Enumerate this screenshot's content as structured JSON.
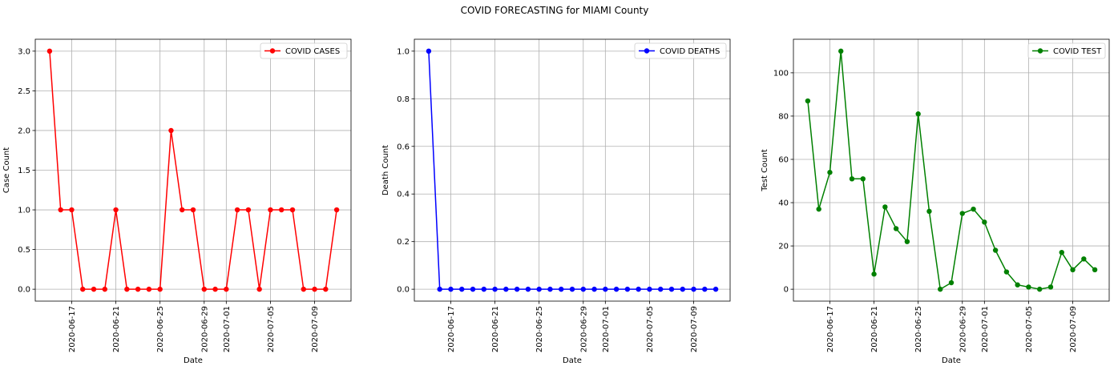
{
  "figure": {
    "title": "COVID FORECASTING for MIAMI County"
  },
  "chart_data": [
    {
      "type": "line",
      "title": "",
      "xlabel": "Date",
      "ylabel": "Case Count",
      "x": [
        "2020-06-15",
        "2020-06-16",
        "2020-06-17",
        "2020-06-18",
        "2020-06-19",
        "2020-06-20",
        "2020-06-21",
        "2020-06-22",
        "2020-06-23",
        "2020-06-24",
        "2020-06-25",
        "2020-06-26",
        "2020-06-27",
        "2020-06-28",
        "2020-06-29",
        "2020-06-30",
        "2020-07-01",
        "2020-07-02",
        "2020-07-03",
        "2020-07-04",
        "2020-07-05",
        "2020-07-06",
        "2020-07-07",
        "2020-07-08",
        "2020-07-09",
        "2020-07-10",
        "2020-07-11"
      ],
      "x_ticks": [
        "2020-06-17",
        "2020-06-21",
        "2020-06-25",
        "2020-06-29",
        "2020-07-01",
        "2020-07-05",
        "2020-07-09"
      ],
      "y_ticks": [
        "0.0",
        "0.5",
        "1.0",
        "1.5",
        "2.0",
        "2.5",
        "3.0"
      ],
      "ylim": [
        -0.15,
        3.15
      ],
      "grid": true,
      "legend_position": "top-right",
      "series": [
        {
          "name": "COVID CASES",
          "color": "#ff0000",
          "values": [
            3,
            1,
            1,
            0,
            0,
            0,
            1,
            0,
            0,
            0,
            0,
            2,
            1,
            1,
            0,
            0,
            0,
            1,
            1,
            0,
            1,
            1,
            1,
            0,
            0,
            0,
            1
          ]
        }
      ]
    },
    {
      "type": "line",
      "title": "",
      "xlabel": "Date",
      "ylabel": "Death Count",
      "x": [
        "2020-06-15",
        "2020-06-16",
        "2020-06-17",
        "2020-06-18",
        "2020-06-19",
        "2020-06-20",
        "2020-06-21",
        "2020-06-22",
        "2020-06-23",
        "2020-06-24",
        "2020-06-25",
        "2020-06-26",
        "2020-06-27",
        "2020-06-28",
        "2020-06-29",
        "2020-06-30",
        "2020-07-01",
        "2020-07-02",
        "2020-07-03",
        "2020-07-04",
        "2020-07-05",
        "2020-07-06",
        "2020-07-07",
        "2020-07-08",
        "2020-07-09",
        "2020-07-10",
        "2020-07-11"
      ],
      "x_ticks": [
        "2020-06-17",
        "2020-06-21",
        "2020-06-25",
        "2020-06-29",
        "2020-07-01",
        "2020-07-05",
        "2020-07-09"
      ],
      "y_ticks": [
        "0.0",
        "0.2",
        "0.4",
        "0.6",
        "0.8",
        "1.0"
      ],
      "ylim": [
        -0.05,
        1.05
      ],
      "grid": true,
      "legend_position": "top-right",
      "series": [
        {
          "name": "COVID DEATHS",
          "color": "#0000ff",
          "values": [
            1,
            0,
            0,
            0,
            0,
            0,
            0,
            0,
            0,
            0,
            0,
            0,
            0,
            0,
            0,
            0,
            0,
            0,
            0,
            0,
            0,
            0,
            0,
            0,
            0,
            0,
            0
          ]
        }
      ]
    },
    {
      "type": "line",
      "title": "",
      "xlabel": "Date",
      "ylabel": "Test Count",
      "x": [
        "2020-06-15",
        "2020-06-16",
        "2020-06-17",
        "2020-06-18",
        "2020-06-19",
        "2020-06-20",
        "2020-06-21",
        "2020-06-22",
        "2020-06-23",
        "2020-06-24",
        "2020-06-25",
        "2020-06-26",
        "2020-06-27",
        "2020-06-28",
        "2020-06-29",
        "2020-06-30",
        "2020-07-01",
        "2020-07-02",
        "2020-07-03",
        "2020-07-04",
        "2020-07-05",
        "2020-07-06",
        "2020-07-07",
        "2020-07-08",
        "2020-07-09",
        "2020-07-10",
        "2020-07-11"
      ],
      "x_ticks": [
        "2020-06-17",
        "2020-06-21",
        "2020-06-25",
        "2020-06-29",
        "2020-07-01",
        "2020-07-05",
        "2020-07-09"
      ],
      "y_ticks": [
        "0",
        "20",
        "40",
        "60",
        "80",
        "100"
      ],
      "ylim": [
        -5.5,
        115.5
      ],
      "grid": true,
      "legend_position": "top-right",
      "series": [
        {
          "name": "COVID TEST",
          "color": "#008000",
          "values": [
            87,
            37,
            54,
            110,
            51,
            51,
            7,
            38,
            28,
            22,
            81,
            36,
            0,
            3,
            35,
            37,
            31,
            18,
            8,
            2,
            1,
            0,
            1,
            17,
            9,
            14,
            9
          ]
        }
      ]
    }
  ]
}
